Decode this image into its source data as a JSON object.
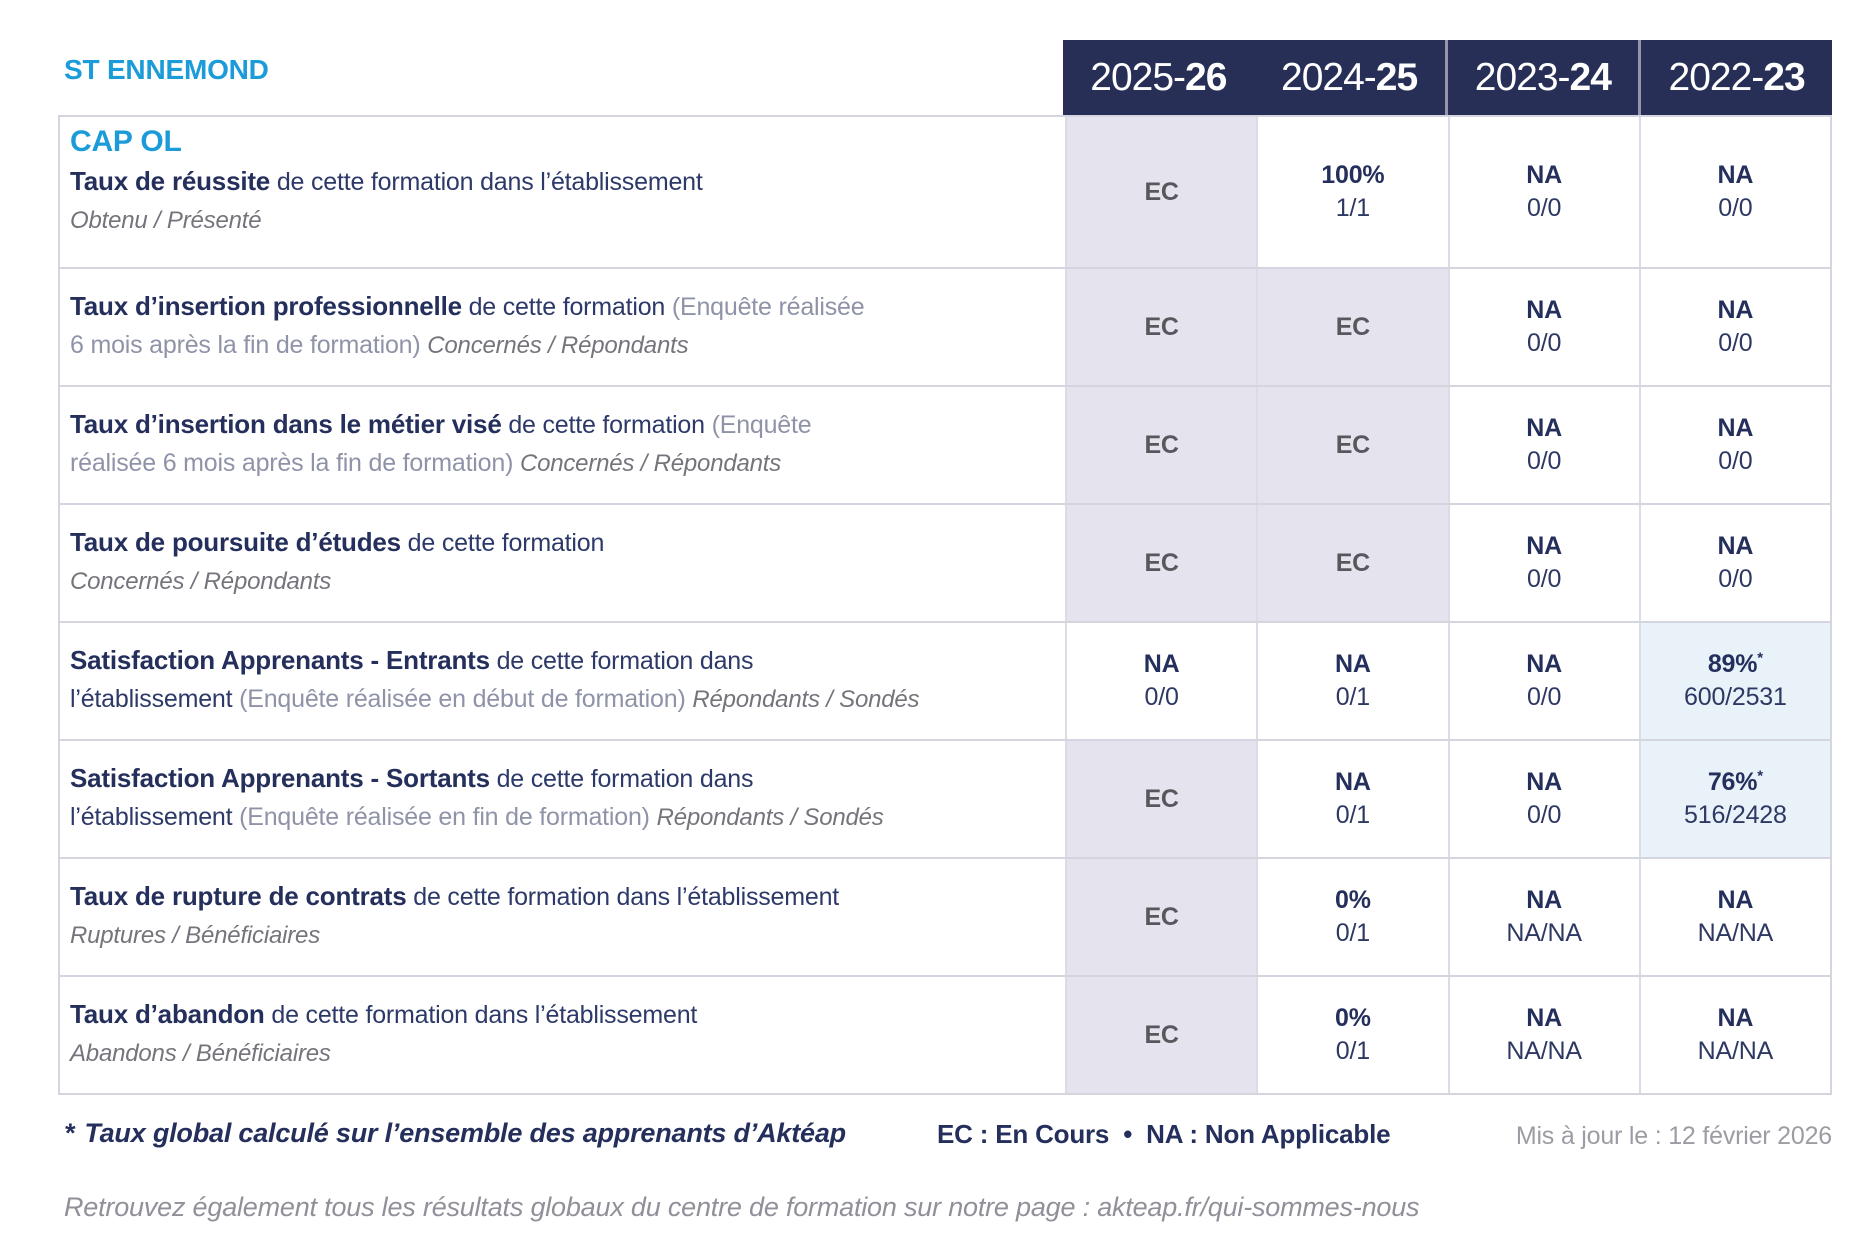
{
  "header": {
    "establishment": "ST ENNEMOND",
    "year_columns": [
      {
        "pre": "2025-",
        "bold": "26",
        "divider": false
      },
      {
        "pre": "2024-",
        "bold": "25",
        "divider": false
      },
      {
        "pre": "2023-",
        "bold": "24",
        "divider": true
      },
      {
        "pre": "2022-",
        "bold": "23",
        "divider": true
      }
    ]
  },
  "colors": {
    "accent_blue": "#1b9bd8",
    "navy": "#252f5c",
    "band_navy": "#272f57",
    "ec_cell_bg": "#e4e3ee",
    "highlight_cell_bg": "#e9f2f9",
    "grid_line": "#d5d5e0",
    "muted_gray": "#8f93a8"
  },
  "table": {
    "program": "CAP OL",
    "rows": [
      {
        "id": "taux-de-reussite",
        "has_program": true,
        "lines": [
          [
            {
              "s": "b",
              "t": "Taux de réussite"
            },
            {
              "s": "r",
              "t": " de cette formation dans l’établissement"
            }
          ],
          [
            {
              "s": "i",
              "t": "Obtenu / Présenté"
            }
          ]
        ],
        "values": [
          {
            "main": "EC",
            "type": "ec",
            "bg": "ec"
          },
          {
            "main": "100%",
            "detail": "1/1"
          },
          {
            "main": "NA",
            "detail": "0/0"
          },
          {
            "main": "NA",
            "detail": "0/0"
          }
        ]
      },
      {
        "id": "taux-insertion-professionnelle",
        "lines": [
          [
            {
              "s": "b",
              "t": "Taux d’insertion professionnelle"
            },
            {
              "s": "r",
              "t": " de cette formation "
            },
            {
              "s": "p",
              "t": "(Enquête réalisée"
            }
          ],
          [
            {
              "s": "p",
              "t": "6 mois après la fin de formation) "
            },
            {
              "s": "i",
              "t": "Concernés / Répondants"
            }
          ]
        ],
        "values": [
          {
            "main": "EC",
            "type": "ec",
            "bg": "ec"
          },
          {
            "main": "EC",
            "type": "ec",
            "bg": "ec"
          },
          {
            "main": "NA",
            "detail": "0/0"
          },
          {
            "main": "NA",
            "detail": "0/0"
          }
        ]
      },
      {
        "id": "taux-insertion-metier-vise",
        "lines": [
          [
            {
              "s": "b",
              "t": "Taux d’insertion dans le métier visé"
            },
            {
              "s": "r",
              "t": " de cette formation "
            },
            {
              "s": "p",
              "t": "(Enquête"
            }
          ],
          [
            {
              "s": "p",
              "t": "réalisée 6 mois après la fin de formation) "
            },
            {
              "s": "i",
              "t": "Concernés / Répondants"
            }
          ]
        ],
        "values": [
          {
            "main": "EC",
            "type": "ec",
            "bg": "ec"
          },
          {
            "main": "EC",
            "type": "ec",
            "bg": "ec"
          },
          {
            "main": "NA",
            "detail": "0/0"
          },
          {
            "main": "NA",
            "detail": "0/0"
          }
        ]
      },
      {
        "id": "taux-poursuite-etudes",
        "lines": [
          [
            {
              "s": "b",
              "t": "Taux de poursuite d’études"
            },
            {
              "s": "r",
              "t": " de cette formation"
            }
          ],
          [
            {
              "s": "i",
              "t": "Concernés / Répondants"
            }
          ]
        ],
        "values": [
          {
            "main": "EC",
            "type": "ec",
            "bg": "ec"
          },
          {
            "main": "EC",
            "type": "ec",
            "bg": "ec"
          },
          {
            "main": "NA",
            "detail": "0/0"
          },
          {
            "main": "NA",
            "detail": "0/0"
          }
        ]
      },
      {
        "id": "satisfaction-apprenants-entrants",
        "lines": [
          [
            {
              "s": "b",
              "t": "Satisfaction Apprenants - Entrants"
            },
            {
              "s": "r",
              "t": " de cette formation dans"
            }
          ],
          [
            {
              "s": "r",
              "t": "l’établissement "
            },
            {
              "s": "p",
              "t": "(Enquête réalisée en début de formation) "
            },
            {
              "s": "i",
              "t": "Répondants / Sondés"
            }
          ]
        ],
        "values": [
          {
            "main": "NA",
            "detail": "0/0"
          },
          {
            "main": "NA",
            "detail": "0/1"
          },
          {
            "main": "NA",
            "detail": "0/0"
          },
          {
            "main": "89%",
            "star": "*",
            "detail": "600/2531",
            "bg": "blue"
          }
        ]
      },
      {
        "id": "satisfaction-apprenants-sortants",
        "lines": [
          [
            {
              "s": "b",
              "t": "Satisfaction Apprenants - Sortants"
            },
            {
              "s": "r",
              "t": " de cette formation dans"
            }
          ],
          [
            {
              "s": "r",
              "t": "l’établissement "
            },
            {
              "s": "p",
              "t": "(Enquête réalisée en fin de formation) "
            },
            {
              "s": "i",
              "t": "Répondants / Sondés"
            }
          ]
        ],
        "values": [
          {
            "main": "EC",
            "type": "ec",
            "bg": "ec"
          },
          {
            "main": "NA",
            "detail": "0/1"
          },
          {
            "main": "NA",
            "detail": "0/0"
          },
          {
            "main": "76%",
            "star": "*",
            "detail": "516/2428",
            "bg": "blue"
          }
        ]
      },
      {
        "id": "taux-rupture-contrats",
        "lines": [
          [
            {
              "s": "b",
              "t": "Taux de rupture de contrats"
            },
            {
              "s": "r",
              "t": " de cette formation dans l’établissement"
            }
          ],
          [
            {
              "s": "i",
              "t": "Ruptures / Bénéficiaires"
            }
          ]
        ],
        "values": [
          {
            "main": "EC",
            "type": "ec",
            "bg": "ec"
          },
          {
            "main": "0%",
            "detail": "0/1"
          },
          {
            "main": "NA",
            "detail": "NA/NA"
          },
          {
            "main": "NA",
            "detail": "NA/NA"
          }
        ]
      },
      {
        "id": "taux-abandon",
        "lines": [
          [
            {
              "s": "b",
              "t": "Taux d’abandon"
            },
            {
              "s": "r",
              "t": " de cette formation dans l’établissement"
            }
          ],
          [
            {
              "s": "i",
              "t": "Abandons / Bénéficiaires"
            }
          ]
        ],
        "values": [
          {
            "main": "EC",
            "type": "ec",
            "bg": "ec"
          },
          {
            "main": "0%",
            "detail": "0/1"
          },
          {
            "main": "NA",
            "detail": "NA/NA"
          },
          {
            "main": "NA",
            "detail": "NA/NA"
          }
        ]
      }
    ]
  },
  "footer": {
    "star": "*",
    "footnote": "Taux global calculé sur l’ensemble des apprenants d’Aktéap",
    "legend": "EC : En Cours  •  NA : Non Applicable",
    "updated": "Mis à jour le : 12 février 2026",
    "bottom_note": "Retrouvez également tous les résultats globaux du centre de formation sur notre page : akteap.fr/qui-sommes-nous"
  }
}
